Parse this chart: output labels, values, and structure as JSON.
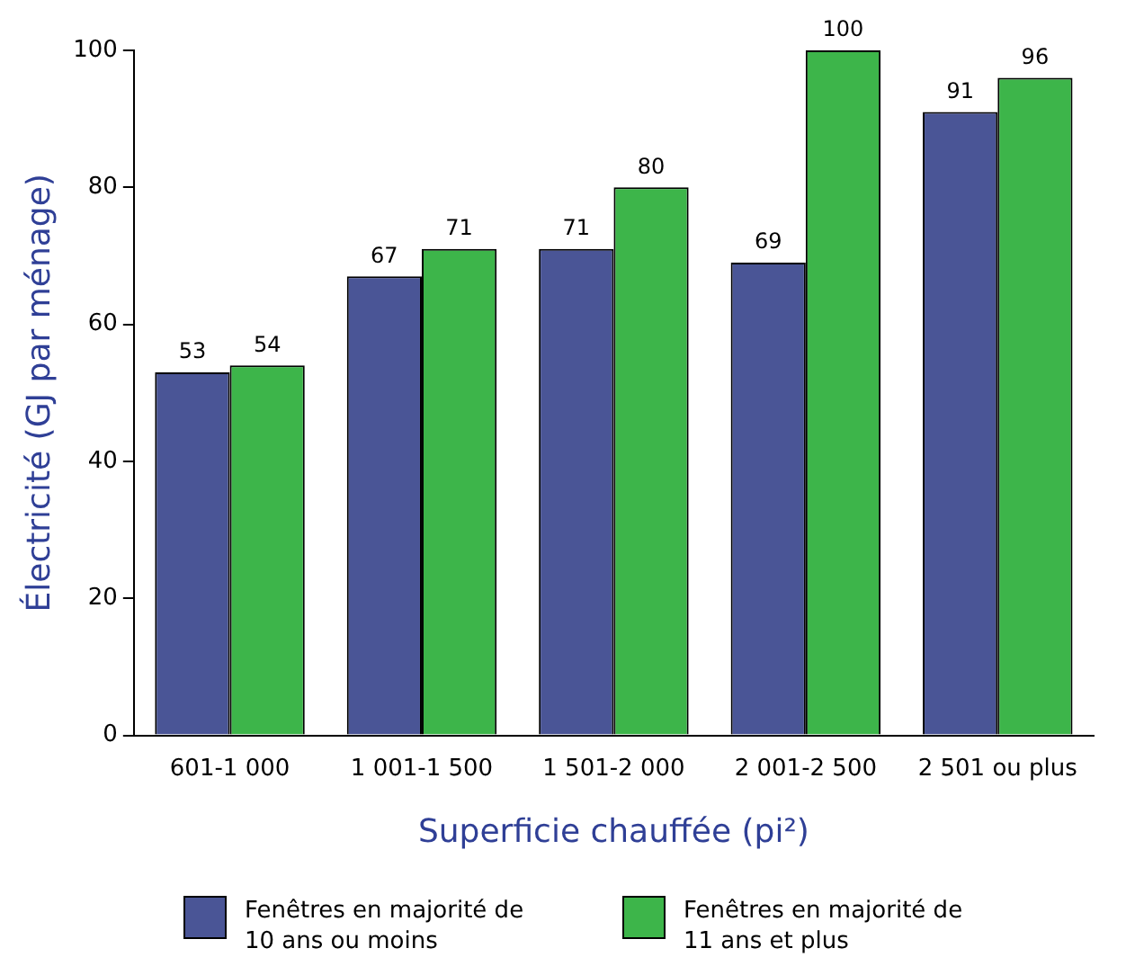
{
  "chart_data": {
    "type": "bar",
    "xlabel": "Superficie chauffée (pi²)",
    "ylabel": "Électricité (GJ par ménage)",
    "categories": [
      "601-1 000",
      "1 001-1 500",
      "1 501-2 000",
      "2 001-2 500",
      "2 501 ou plus"
    ],
    "series": [
      {
        "name": "Fenêtres en majorité de 10 ans ou moins",
        "color": "#4a5596",
        "values": [
          53,
          67,
          71,
          69,
          91
        ]
      },
      {
        "name": "Fenêtres en majorité de 11 ans et plus",
        "color": "#3db54a",
        "values": [
          54,
          71,
          80,
          100,
          96
        ]
      }
    ],
    "ylim": [
      0,
      100
    ],
    "yticks": [
      0,
      20,
      40,
      60,
      80,
      100
    ],
    "grid": false,
    "legend": "bottom",
    "data_labels": true
  }
}
